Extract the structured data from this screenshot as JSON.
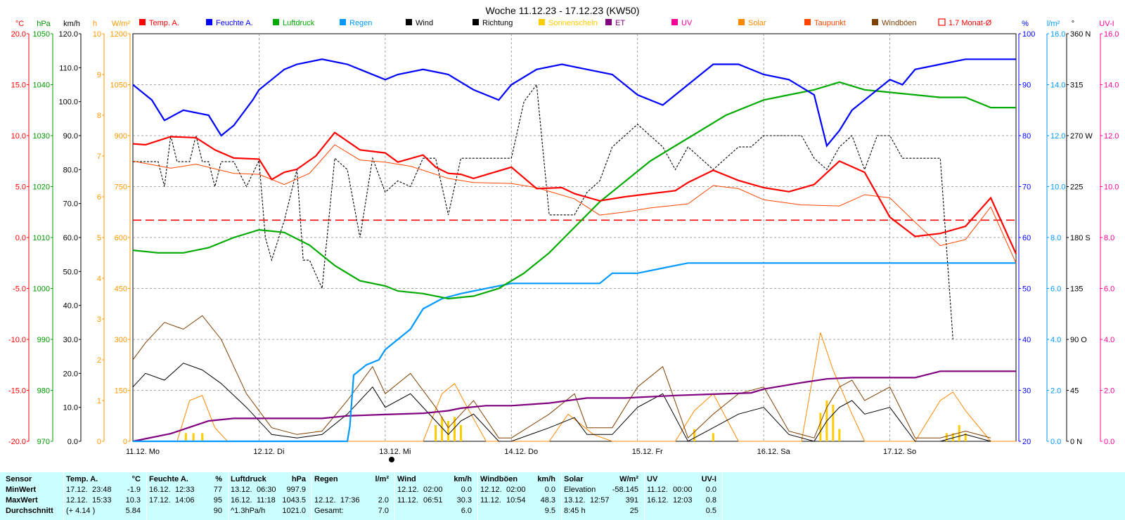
{
  "title": "Woche 11.12.23 - 17.12.23 (KW50)",
  "legend": [
    {
      "label": "Temp. A.",
      "color": "#ff0000",
      "marker": "box"
    },
    {
      "label": "Feuchte A.",
      "color": "#0000ff",
      "marker": "box"
    },
    {
      "label": "Luftdruck",
      "color": "#00aa00",
      "marker": "box"
    },
    {
      "label": "Regen",
      "color": "#0099ff",
      "marker": "box"
    },
    {
      "label": "Wind",
      "color": "#000000",
      "marker": "box"
    },
    {
      "label": "Richtung",
      "color": "#000000",
      "marker": "box"
    },
    {
      "label": "Sonnenschein",
      "color": "#ffcc00",
      "marker": "box"
    },
    {
      "label": "ET",
      "color": "#800080",
      "marker": "box"
    },
    {
      "label": "UV",
      "color": "#ff0099",
      "marker": "box"
    },
    {
      "label": "Solar",
      "color": "#ff8800",
      "marker": "box"
    },
    {
      "label": "Taupunkt",
      "color": "#ff4400",
      "marker": "box"
    },
    {
      "label": "Windböen",
      "color": "#7f3f00",
      "marker": "box"
    },
    {
      "label": "1.7 Monat-Ø",
      "color": "#ff0000",
      "marker": "outline"
    }
  ],
  "left_axes": [
    {
      "unit": "°C",
      "color": "#ff0000",
      "ticks": [
        "20.0",
        "15.0",
        "10.0",
        "5.0",
        "0.0",
        "-5.0",
        "-10.0",
        "-15.0",
        "-20.0"
      ]
    },
    {
      "unit": "hPa",
      "color": "#009900",
      "ticks": [
        "1050",
        "1040",
        "1030",
        "1020",
        "1010",
        "1000",
        "990",
        "980",
        "970"
      ]
    },
    {
      "unit": "km/h",
      "color": "#000000",
      "ticks": [
        "120.0",
        "110.0",
        "100.0",
        "90.0",
        "80.0",
        "70.0",
        "60.0",
        "50.0",
        "40.0",
        "30.0",
        "20.0",
        "10.0",
        "0.0"
      ]
    },
    {
      "unit": "h",
      "color": "#ff9900",
      "ticks": [
        "10",
        "9",
        "8",
        "7",
        "6",
        "5",
        "4",
        "3",
        "2",
        "1",
        "0"
      ]
    },
    {
      "unit": "W/m²",
      "color": "#ff9900",
      "ticks": [
        "1200",
        "1050",
        "900",
        "750",
        "600",
        "450",
        "300",
        "150",
        "0"
      ]
    }
  ],
  "right_axes": [
    {
      "unit": "%",
      "color": "#0000ff",
      "ticks": [
        "100",
        "90",
        "80",
        "70",
        "60",
        "50",
        "40",
        "30",
        "20"
      ]
    },
    {
      "unit": "l/m²",
      "color": "#0099ff",
      "ticks": [
        "16.0",
        "14.0",
        "12.0",
        "10.0",
        "8.0",
        "6.0",
        "4.0",
        "2.0",
        "0.0"
      ]
    },
    {
      "unit": "°",
      "color": "#000000",
      "ticks": [
        "360 N",
        "315",
        "270 W",
        "225",
        "180 S",
        "135",
        "90 O",
        "45",
        "0 N"
      ]
    },
    {
      "unit": "UV-I",
      "color": "#ff0099",
      "ticks": [
        "16.0",
        "14.0",
        "12.0",
        "10.0",
        "8.0",
        "6.0",
        "4.0",
        "2.0",
        "0.0"
      ]
    }
  ],
  "day_labels": [
    "11.12. Mo",
    "12.12. Di",
    "13.12. Mi",
    "14.12. Do",
    "15.12. Fr",
    "16.12. Sa",
    "17.12. So"
  ],
  "chart_data": {
    "type": "line",
    "title": "Woche 11.12.23 - 17.12.23 (KW50)",
    "x_range_days": [
      0,
      7
    ],
    "reference_line": {
      "name": "1.7 Monat-Ø",
      "axis": "°C",
      "value": 1.7
    },
    "series": [
      {
        "name": "Temp. A.",
        "axis": "°C",
        "color": "#ff0000",
        "x": [
          0,
          0.1,
          0.3,
          0.5,
          0.65,
          0.8,
          1.0,
          1.1,
          1.2,
          1.3,
          1.45,
          1.6,
          1.8,
          2.0,
          2.1,
          2.3,
          2.4,
          2.5,
          2.6,
          2.7,
          3.0,
          3.2,
          3.4,
          3.5,
          3.7,
          3.9,
          4.1,
          4.3,
          4.4,
          4.6,
          4.8,
          5.0,
          5.2,
          5.4,
          5.6,
          5.8,
          6.0,
          6.2,
          6.4,
          6.6,
          6.8,
          7.0
        ],
        "y": [
          9.2,
          9.1,
          9.9,
          9.8,
          8.6,
          7.8,
          7.7,
          5.7,
          6.4,
          6.7,
          8.0,
          10.3,
          8.6,
          8.3,
          7.4,
          8.1,
          6.9,
          6.3,
          6.2,
          5.8,
          6.9,
          4.8,
          4.9,
          4.3,
          3.6,
          4.0,
          4.3,
          4.6,
          5.4,
          6.6,
          5.6,
          4.9,
          4.5,
          5.2,
          7.5,
          6.4,
          2.0,
          0.1,
          0.4,
          1.1,
          3.9,
          -1.6
        ]
      },
      {
        "name": "Taupunkt",
        "axis": "°C",
        "color": "#ff4400",
        "x": [
          0,
          0.3,
          0.5,
          0.8,
          1.0,
          1.2,
          1.4,
          1.6,
          1.8,
          2.0,
          2.2,
          2.5,
          2.7,
          3.0,
          3.2,
          3.5,
          3.7,
          3.9,
          4.1,
          4.4,
          4.6,
          4.8,
          5.0,
          5.3,
          5.6,
          5.8,
          6.0,
          6.2,
          6.4,
          6.6,
          6.8,
          7.0
        ],
        "y": [
          7.5,
          6.8,
          7.2,
          6.3,
          6.2,
          5.2,
          6.3,
          9.1,
          7.6,
          7.4,
          7.0,
          5.8,
          5.4,
          5.3,
          4.9,
          3.8,
          2.2,
          2.5,
          2.9,
          3.3,
          5.1,
          4.8,
          3.7,
          3.2,
          3.1,
          4.2,
          3.9,
          1.5,
          -0.8,
          -0.2,
          3.0,
          -2.5
        ]
      },
      {
        "name": "Feuchte A.",
        "axis": "%",
        "color": "#0000ff",
        "x": [
          0,
          0.15,
          0.25,
          0.4,
          0.6,
          0.7,
          0.8,
          0.95,
          1.0,
          1.2,
          1.3,
          1.5,
          1.7,
          1.8,
          2.0,
          2.1,
          2.3,
          2.5,
          2.7,
          2.9,
          3.0,
          3.2,
          3.4,
          3.6,
          3.8,
          4.0,
          4.2,
          4.4,
          4.6,
          4.8,
          5.0,
          5.2,
          5.4,
          5.5,
          5.6,
          5.7,
          5.8,
          6.0,
          6.1,
          6.2,
          6.4,
          6.6,
          6.8,
          7.0
        ],
        "y": [
          90,
          87,
          83,
          85,
          84,
          80,
          82,
          87,
          89,
          93,
          94,
          95,
          94,
          93,
          91,
          92,
          93,
          92,
          89,
          87,
          90,
          93,
          94,
          93,
          92,
          88,
          86,
          90,
          94,
          94,
          92,
          91,
          88,
          78,
          81,
          85,
          87,
          91,
          90,
          93,
          94,
          95,
          95,
          95
        ]
      },
      {
        "name": "Luftdruck",
        "axis": "hPa",
        "color": "#00aa00",
        "x": [
          0,
          0.2,
          0.4,
          0.6,
          0.8,
          1.0,
          1.2,
          1.4,
          1.6,
          1.8,
          2.0,
          2.1,
          2.3,
          2.5,
          2.7,
          2.9,
          3.1,
          3.3,
          3.5,
          3.7,
          3.9,
          4.1,
          4.3,
          4.5,
          4.7,
          5.0,
          5.2,
          5.4,
          5.6,
          5.8,
          6.0,
          6.2,
          6.4,
          6.6,
          6.8,
          7.0
        ],
        "y": [
          1007.5,
          1007,
          1007,
          1008,
          1010,
          1011.5,
          1011,
          1008.5,
          1004.5,
          1001.5,
          1000.5,
          999.5,
          999,
          998,
          998.5,
          1000,
          1003,
          1007,
          1012,
          1017,
          1021,
          1025,
          1028,
          1031,
          1034,
          1037,
          1038,
          1039,
          1040.5,
          1039,
          1038.5,
          1038,
          1037.5,
          1037.5,
          1035.5,
          1035.5
        ]
      },
      {
        "name": "Wind",
        "axis": "km/h",
        "color": "#000000",
        "x": [
          0,
          0.1,
          0.25,
          0.4,
          0.55,
          0.7,
          0.9,
          1.1,
          1.3,
          1.5,
          1.7,
          1.9,
          2.0,
          2.2,
          2.4,
          2.5,
          2.6,
          2.7,
          2.9,
          3.0,
          3.3,
          3.5,
          3.6,
          3.8,
          4.0,
          4.2,
          4.4,
          4.6,
          4.8,
          5.0,
          5.2,
          5.4,
          5.5,
          5.6,
          5.7,
          5.8,
          6.0,
          6.2,
          6.4,
          6.6,
          6.8
        ],
        "y": [
          16,
          20,
          18,
          23,
          21,
          17,
          10,
          2,
          1,
          2,
          8,
          16,
          10,
          14,
          6,
          2,
          6,
          8,
          0,
          0,
          4,
          7,
          2,
          2,
          10,
          14,
          0,
          4,
          8,
          10,
          2,
          0,
          6,
          10,
          12,
          8,
          10,
          0,
          0,
          2,
          0
        ]
      },
      {
        "name": "Windböen",
        "axis": "km/h",
        "color": "#7f3f00",
        "x": [
          0,
          0.1,
          0.25,
          0.4,
          0.55,
          0.7,
          0.9,
          1.1,
          1.3,
          1.5,
          1.7,
          1.9,
          2.0,
          2.2,
          2.4,
          2.5,
          2.6,
          2.7,
          2.9,
          3.0,
          3.3,
          3.5,
          3.6,
          3.8,
          4.0,
          4.2,
          4.4,
          4.6,
          4.8,
          5.0,
          5.2,
          5.4,
          5.5,
          5.6,
          5.7,
          5.8,
          6.0,
          6.2,
          6.4,
          6.6,
          6.8
        ],
        "y": [
          24,
          29,
          35,
          33,
          37,
          30,
          14,
          4,
          2,
          3,
          12,
          22,
          14,
          20,
          10,
          4,
          8,
          12,
          1,
          1,
          8,
          14,
          4,
          4,
          16,
          22,
          1,
          8,
          14,
          16,
          3,
          1,
          10,
          16,
          18,
          12,
          16,
          1,
          1,
          3,
          1
        ]
      },
      {
        "name": "Regen",
        "axis": "l/m²",
        "color": "#0099ff",
        "x": [
          0,
          1.7,
          1.72,
          1.75,
          1.85,
          1.95,
          2.0,
          2.1,
          2.2,
          2.3,
          2.45,
          2.6,
          2.8,
          3.0,
          3.3,
          3.7,
          3.8,
          4.0,
          4.2,
          4.4,
          4.6,
          4.8,
          5.0,
          6.0,
          7.0
        ],
        "y": [
          0,
          0,
          0.6,
          2.6,
          3.0,
          3.2,
          3.6,
          4.0,
          4.4,
          5.2,
          5.6,
          5.8,
          6.0,
          6.2,
          6.2,
          6.2,
          6.6,
          6.6,
          6.8,
          7.0,
          7.0,
          7.0,
          7.0,
          7.0,
          7.0
        ]
      },
      {
        "name": "ET",
        "axis": "l/m²",
        "color": "#800080",
        "x": [
          0,
          0.3,
          0.6,
          0.8,
          1.0,
          1.2,
          1.5,
          1.7,
          2.0,
          2.3,
          2.5,
          2.6,
          2.8,
          3.0,
          3.3,
          3.6,
          3.9,
          4.3,
          4.6,
          4.9,
          5.0,
          5.3,
          5.5,
          5.7,
          5.9,
          6.2,
          6.4,
          6.6,
          7.0
        ],
        "y": [
          0,
          0.3,
          0.8,
          0.9,
          0.9,
          0.9,
          0.9,
          1.0,
          1.05,
          1.1,
          1.2,
          1.3,
          1.4,
          1.4,
          1.5,
          1.7,
          1.7,
          1.8,
          1.85,
          1.9,
          2.05,
          2.3,
          2.45,
          2.5,
          2.5,
          2.5,
          2.75,
          2.75,
          2.75
        ]
      },
      {
        "name": "Solar",
        "axis": "W/m²",
        "color": "#ff8800",
        "x": [
          0,
          0.35,
          0.45,
          0.55,
          0.65,
          0.75,
          2.3,
          2.45,
          2.55,
          2.65,
          2.8,
          3.3,
          3.45,
          3.55,
          3.65,
          3.8,
          4.3,
          4.45,
          4.6,
          4.8,
          5.1,
          5.3,
          5.45,
          5.55,
          5.7,
          5.8,
          6.2,
          6.4,
          6.5,
          6.6,
          6.8,
          7.0
        ],
        "y": [
          0,
          0,
          120,
          135,
          40,
          0,
          0,
          140,
          170,
          100,
          0,
          0,
          80,
          50,
          20,
          0,
          0,
          90,
          140,
          0,
          0,
          0,
          320,
          210,
          80,
          0,
          0,
          120,
          145,
          90,
          0,
          0
        ]
      },
      {
        "name": "Sonnenschein",
        "axis": "h",
        "color": "#ffcc00",
        "type": "bar",
        "x": [
          0.42,
          0.48,
          0.55,
          2.4,
          2.45,
          2.5,
          2.55,
          2.6,
          4.45,
          4.6,
          5.45,
          5.5,
          5.55,
          5.6,
          6.45,
          6.5,
          6.55,
          6.6
        ],
        "y": [
          0.2,
          0.2,
          0.2,
          0.4,
          0.6,
          0.5,
          0.6,
          0.4,
          0.3,
          0.2,
          0.7,
          1.0,
          0.9,
          0.3,
          0.2,
          0.2,
          0.4,
          0.2
        ]
      },
      {
        "name": "Richtung",
        "axis": "°",
        "color": "#000000",
        "x": [
          0,
          0.2,
          0.25,
          0.3,
          0.35,
          0.4,
          0.45,
          0.5,
          0.55,
          0.6,
          0.65,
          0.7,
          0.8,
          0.9,
          1.0,
          1.05,
          1.1,
          1.2,
          1.3,
          1.35,
          1.4,
          1.5,
          1.6,
          1.7,
          1.8,
          1.9,
          2.0,
          2.1,
          2.2,
          2.3,
          2.4,
          2.5,
          2.6,
          2.7,
          2.9,
          3.0,
          3.1,
          3.2,
          3.3,
          3.4,
          3.5,
          3.6,
          3.7,
          3.8,
          3.9,
          4.0,
          4.1,
          4.2,
          4.3,
          4.4,
          4.5,
          4.6,
          4.7,
          4.8,
          4.9,
          5.0,
          5.2,
          5.3,
          5.4,
          5.5,
          5.6,
          5.7,
          5.8,
          5.9,
          6.0,
          6.1,
          6.2,
          6.3,
          6.4,
          6.5
        ],
        "y": [
          247,
          247,
          225,
          270,
          247,
          247,
          247,
          270,
          247,
          247,
          225,
          247,
          247,
          225,
          248,
          180,
          160,
          195,
          240,
          160,
          160,
          135,
          250,
          240,
          180,
          250,
          220,
          230,
          225,
          250,
          250,
          200,
          250,
          250,
          250,
          250,
          300,
          315,
          200,
          200,
          200,
          220,
          230,
          260,
          270,
          280,
          270,
          260,
          240,
          260,
          250,
          240,
          250,
          260,
          260,
          270,
          270,
          270,
          250,
          240,
          260,
          270,
          240,
          270,
          270,
          250,
          250,
          250,
          250,
          90
        ]
      }
    ]
  },
  "stats": {
    "col_sensor": {
      "head": "Sensor",
      "min": "MinWert",
      "max": "MaxWert",
      "avg": "Durchschnitt"
    },
    "temp": {
      "label": "Temp. A.",
      "unit": "°C",
      "min_date": "17.12.",
      "min_time": "23:48",
      "min_val": "-1.9",
      "max_date": "12.12.",
      "max_time": "15:33",
      "max_val": "10.3",
      "avg_note": "(+ 4.14 )",
      "avg_val": "5.84"
    },
    "hum": {
      "label": "Feuchte A.",
      "unit": "%",
      "min_date": "16.12.",
      "min_time": "12:33",
      "min_val": "77",
      "max_date": "17.12.",
      "max_time": "14:06",
      "max_val": "95",
      "avg_val": "90"
    },
    "press": {
      "label": "Luftdruck",
      "unit": "hPa",
      "min_date": "13.12.",
      "min_time": "06:30",
      "min_val": "997.9",
      "max_date": "16.12.",
      "max_time": "11:18",
      "max_val": "1043.5",
      "avg_note": "^1.3hPa/h",
      "avg_val": "1021.0"
    },
    "rain": {
      "label": "Regen",
      "unit": "l/m²",
      "max_date": "12.12.",
      "max_time": "17:36",
      "max_val": "2.0",
      "avg_note": "Gesamt:",
      "avg_val": "7.0"
    },
    "wind": {
      "label": "Wind",
      "unit": "km/h",
      "min_date": "12.12.",
      "min_time": "02:00",
      "min_val": "0.0",
      "max_date": "11.12.",
      "max_time": "06:51",
      "max_val": "30.3",
      "avg_val": "6.0"
    },
    "gust": {
      "label": "Windböen",
      "unit": "km/h",
      "min_date": "12.12.",
      "min_time": "02:00",
      "min_val": "0.0",
      "max_date": "11.12.",
      "max_time": "10:54",
      "max_val": "48.3",
      "avg_val": "9.5"
    },
    "solar": {
      "label": "Solar",
      "unit": "W/m²",
      "min_note": "Elevation",
      "min_val": "-58.145",
      "max_date": "13.12.",
      "max_time": "12:57",
      "max_val": "391",
      "avg_note": "8:45 h",
      "avg_val": "25"
    },
    "uv": {
      "label": "UV",
      "unit": "UV-I",
      "min_date": "11.12.",
      "min_time": "00:00",
      "min_val": "0.0",
      "max_date": "16.12.",
      "max_time": "12:03",
      "max_val": "0.8",
      "avg_val": "0.5"
    }
  }
}
